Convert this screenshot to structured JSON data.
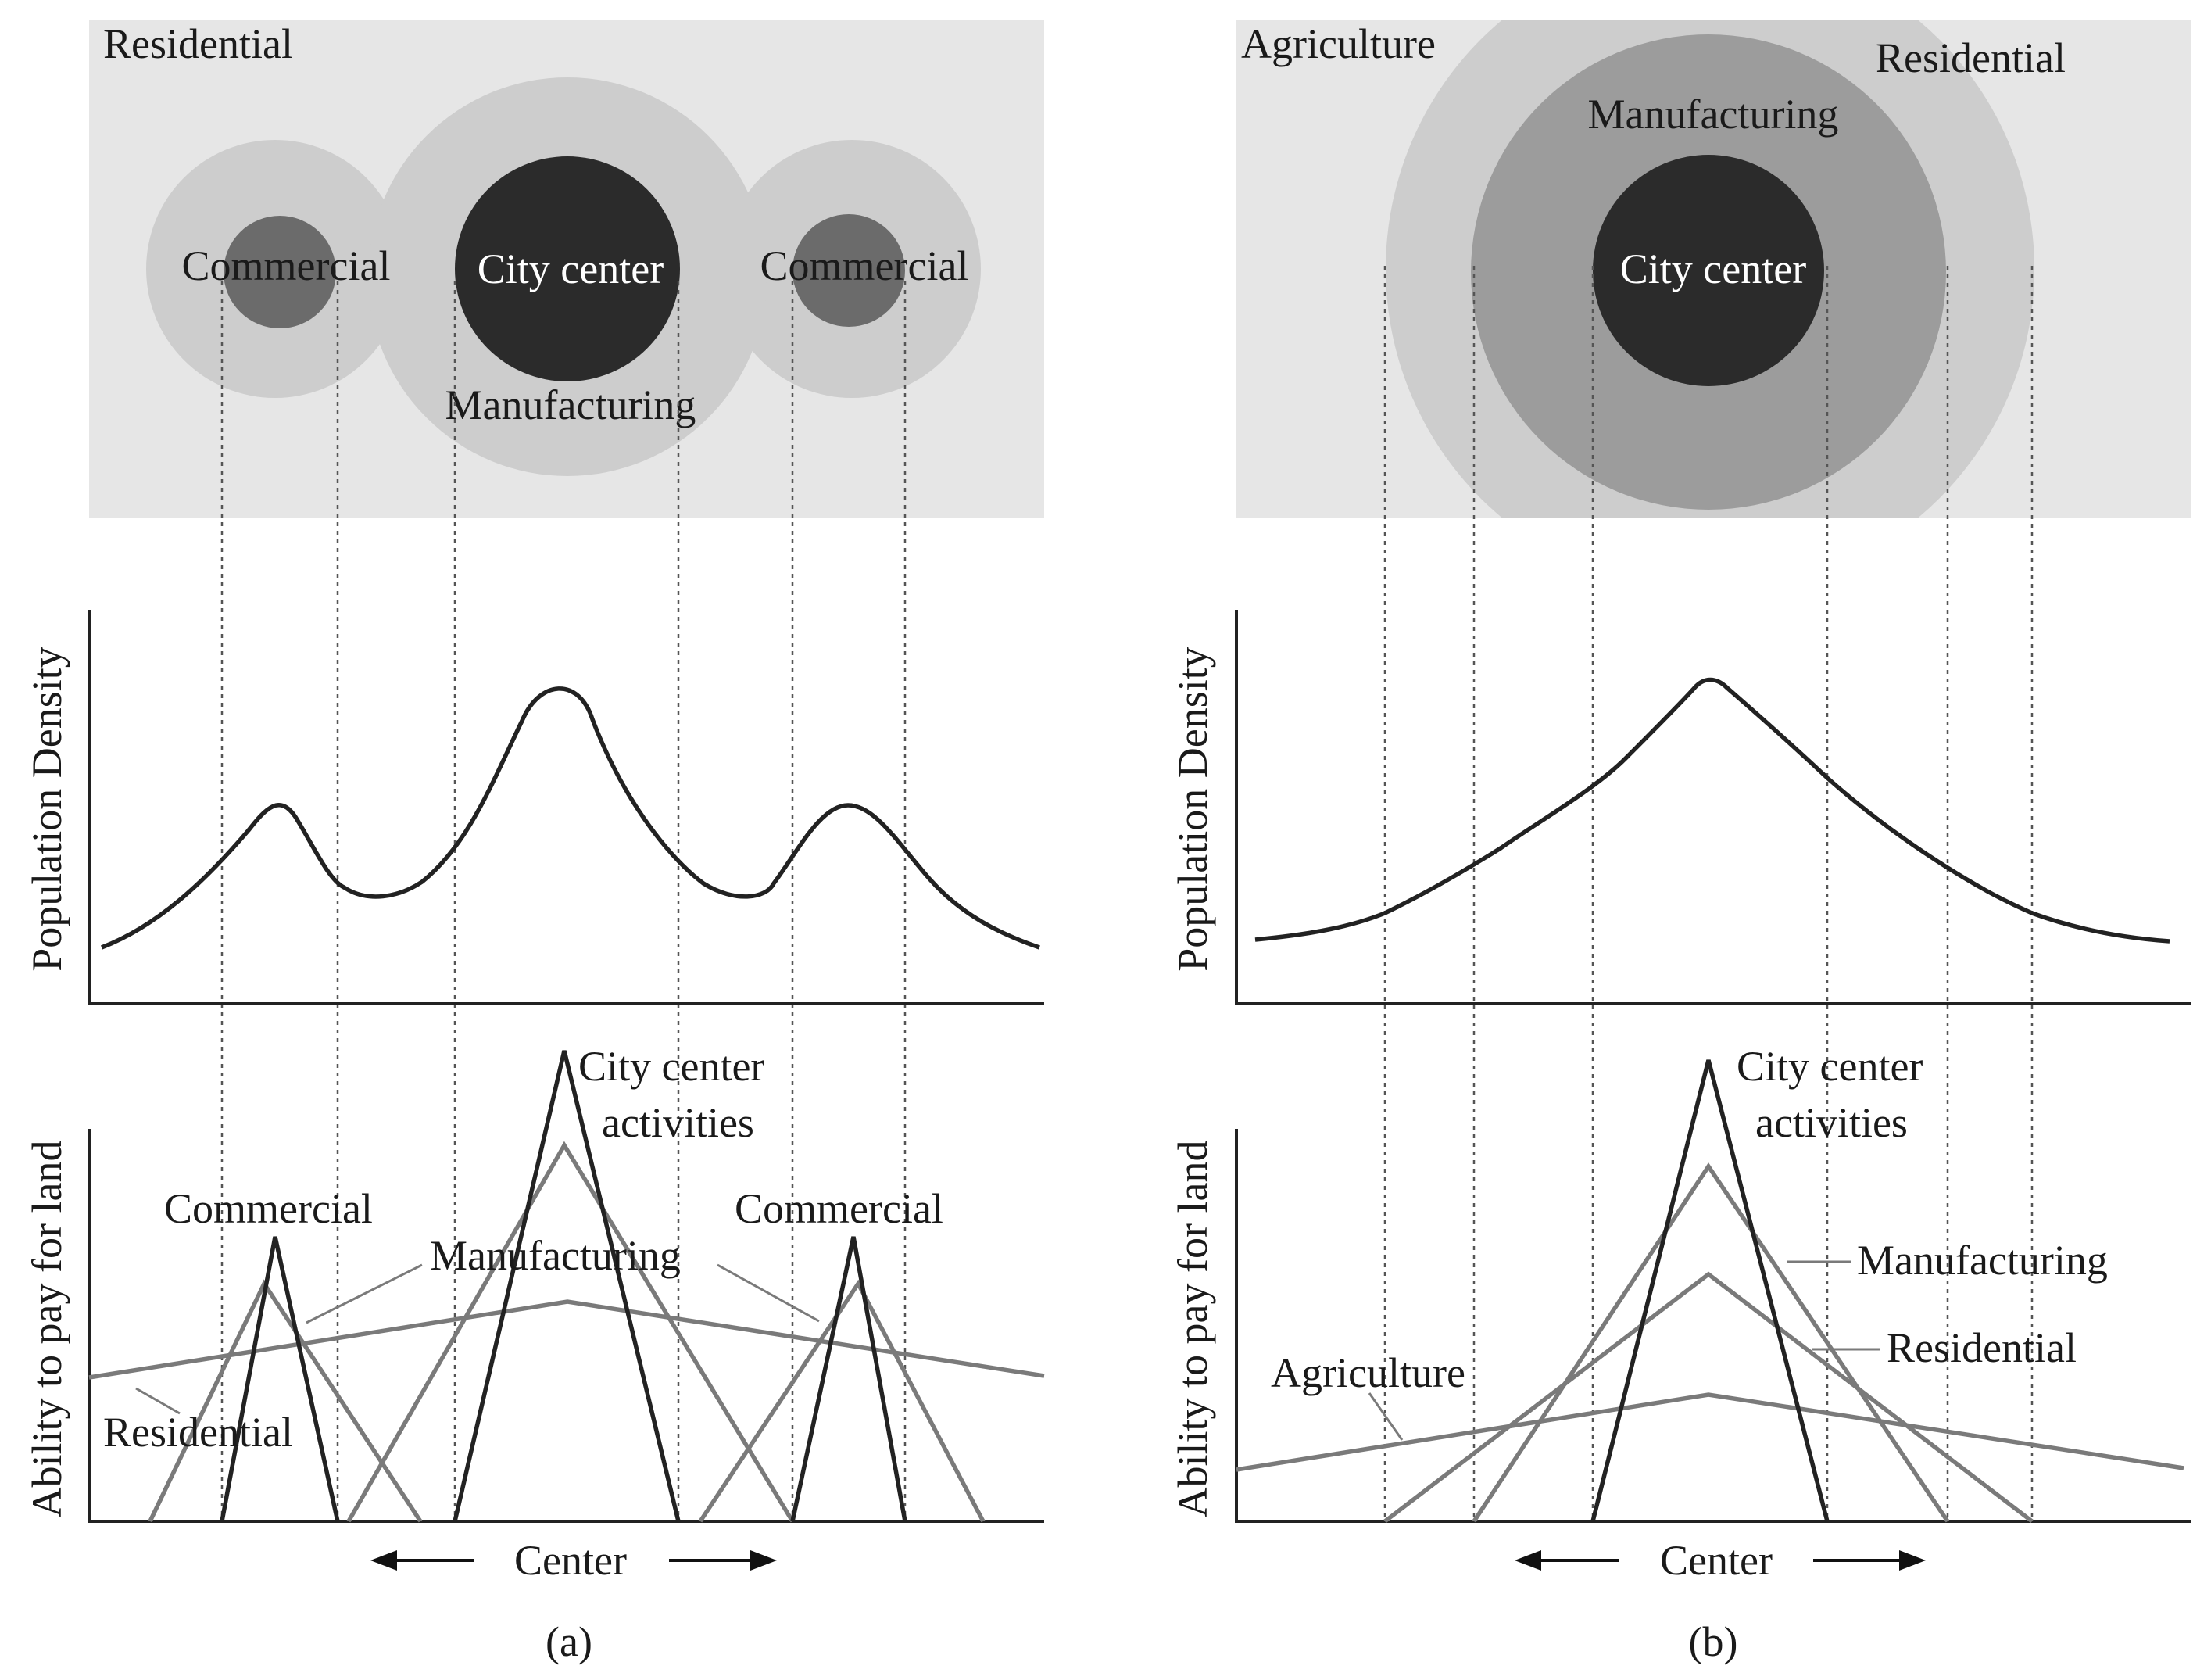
{
  "colors": {
    "background_zone": "#e6e6e6",
    "ring_light": "#cdcdcd",
    "ring_mid": "#9c9c9c",
    "commercial_core": "#6b6b6b",
    "city_center": "#2b2b2b",
    "line_dark": "#222222",
    "line_gray": "#7a7a7a"
  },
  "panel_a": {
    "caption": "(a)",
    "map": {
      "background_label": "Residential",
      "left_commercial_label": "Commercial",
      "city_center_label": "City center",
      "manufacturing_label": "Manufacturing",
      "right_commercial_label": "Commercial"
    },
    "density": {
      "ylabel": "Population Density"
    },
    "bid_rent": {
      "ylabel": "Ability to pay for land",
      "city_center_label": [
        "City center",
        "activities"
      ],
      "left_commercial_label": "Commercial",
      "right_commercial_label": "Commercial",
      "manufacturing_label": "Manufacturing",
      "residential_label": "Residential",
      "xlabel": "Center"
    }
  },
  "panel_b": {
    "caption": "(b)",
    "map": {
      "agriculture_label": "Agriculture",
      "residential_label": "Residential",
      "manufacturing_label": "Manufacturing",
      "city_center_label": "City center"
    },
    "density": {
      "ylabel": "Population Density"
    },
    "bid_rent": {
      "ylabel": "Ability to pay for land",
      "city_center_label": [
        "City center",
        "activities"
      ],
      "manufacturing_label": "Manufacturing",
      "residential_label": "Residential",
      "agriculture_label": "Agriculture",
      "xlabel": "Center"
    }
  }
}
